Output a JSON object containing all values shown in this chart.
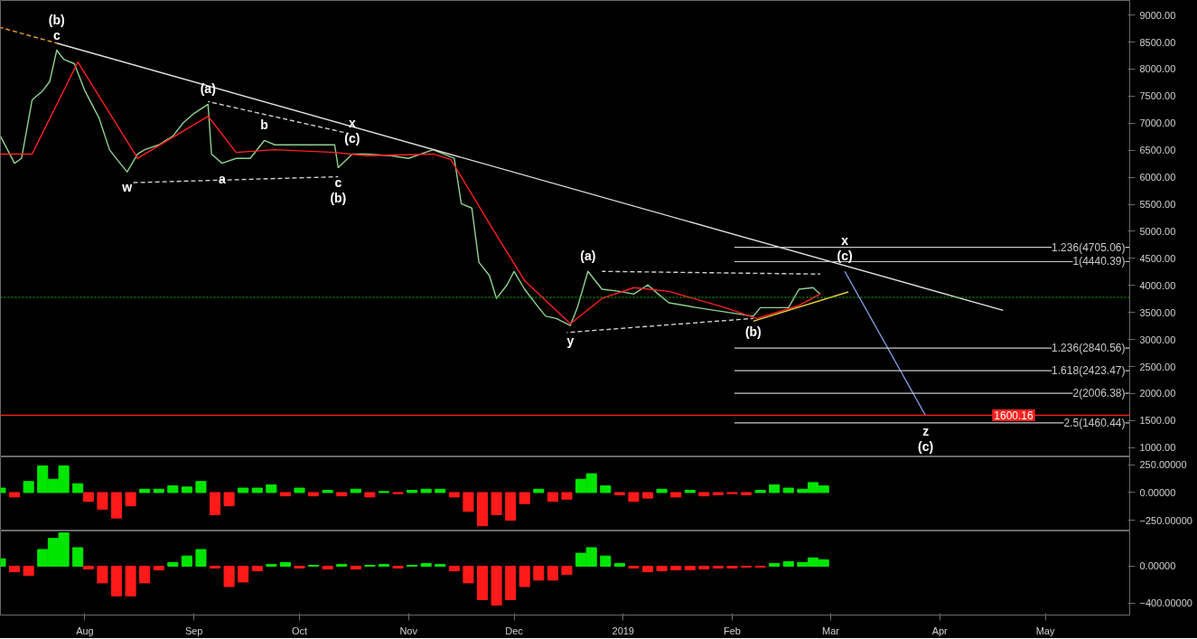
{
  "chart_data": [
    {
      "type": "line",
      "xlim": [
        "2018-07-08",
        "2019-05-25"
      ],
      "ylim": [
        830,
        9270
      ],
      "tick_labels": "y",
      "yticks": [
        {
          "value": 1000,
          "label": "1000.00"
        },
        {
          "value": 1500,
          "label": "1500.00"
        },
        {
          "value": 2000,
          "label": "2000.00"
        },
        {
          "value": 2500,
          "label": "2500.00"
        },
        {
          "value": 3000,
          "label": "3000.00"
        },
        {
          "value": 3500,
          "label": "3500.00"
        },
        {
          "value": 4000,
          "label": "4000.00"
        },
        {
          "value": 4500,
          "label": "4500.00"
        },
        {
          "value": 5000,
          "label": "5000.00"
        },
        {
          "value": 5500,
          "label": "5500.00"
        },
        {
          "value": 6000,
          "label": "6000.00"
        },
        {
          "value": 6500,
          "label": "6500.00"
        },
        {
          "value": 7000,
          "label": "7000.00"
        },
        {
          "value": 7500,
          "label": "7500.00"
        },
        {
          "value": 8000,
          "label": "8000.00"
        },
        {
          "value": 8500,
          "label": "8500.00"
        },
        {
          "value": 9000,
          "label": "9000.00"
        }
      ],
      "series": [
        {
          "color": "#8fd18f",
          "x": [
            "2018-07-08",
            "2018-07-12",
            "2018-07-14",
            "2018-07-17",
            "2018-07-20",
            "2018-07-22",
            "2018-07-24",
            "2018-07-26",
            "2018-07-29",
            "2018-08-01",
            "2018-08-03",
            "2018-08-05",
            "2018-08-08",
            "2018-08-11",
            "2018-08-13",
            "2018-08-16",
            "2018-08-18",
            "2018-08-22",
            "2018-08-26",
            "2018-08-29",
            "2018-09-01",
            "2018-09-05",
            "2018-09-06",
            "2018-09-09",
            "2018-09-13",
            "2018-09-17",
            "2018-09-21",
            "2018-09-24",
            "2018-09-28",
            "2018-10-01",
            "2018-10-07",
            "2018-10-11",
            "2018-10-12",
            "2018-10-16",
            "2018-10-20",
            "2018-10-27",
            "2018-11-01",
            "2018-11-08",
            "2018-11-14",
            "2018-11-16",
            "2018-11-19",
            "2018-11-21",
            "2018-11-24",
            "2018-11-26",
            "2018-11-29",
            "2018-12-01",
            "2018-12-04",
            "2018-12-08",
            "2018-12-10",
            "2018-12-13",
            "2018-12-17",
            "2018-12-19",
            "2018-12-22",
            "2018-12-26",
            "2018-12-31",
            "2019-01-04",
            "2019-01-08",
            "2019-01-11",
            "2019-01-14",
            "2019-01-22",
            "2019-01-30",
            "2019-02-07",
            "2019-02-09",
            "2019-02-17",
            "2019-02-20",
            "2019-02-24",
            "2019-02-26"
          ],
          "values": [
            6760,
            6260,
            6350,
            7430,
            7600,
            7770,
            8350,
            8180,
            8100,
            7600,
            7350,
            7100,
            6510,
            6260,
            6100,
            6430,
            6510,
            6600,
            6760,
            7010,
            7180,
            7350,
            6430,
            6260,
            6350,
            6350,
            6680,
            6600,
            6600,
            6600,
            6600,
            6600,
            6180,
            6430,
            6430,
            6400,
            6350,
            6510,
            6350,
            5510,
            5430,
            4430,
            4180,
            3760,
            4010,
            4260,
            3930,
            3590,
            3430,
            3390,
            3260,
            3590,
            4260,
            3930,
            3890,
            3840,
            4010,
            3840,
            3680,
            3590,
            3510,
            3430,
            3590,
            3590,
            3930,
            3960,
            3840
          ]
        },
        {
          "color": "#ff2020",
          "x": [
            "2018-07-08",
            "2018-07-17",
            "2018-07-30",
            "2018-08-16",
            "2018-09-05",
            "2018-09-13",
            "2018-09-24",
            "2018-10-11",
            "2018-10-20",
            "2018-11-08",
            "2018-11-13",
            "2018-11-26",
            "2018-12-04",
            "2018-12-17",
            "2018-12-26",
            "2019-01-04",
            "2019-01-14",
            "2019-01-30",
            "2019-02-08",
            "2019-02-20",
            "2019-02-26"
          ],
          "values": [
            6430,
            6430,
            8130,
            6350,
            7130,
            6460,
            6510,
            6460,
            6400,
            6430,
            6330,
            4930,
            4090,
            3290,
            3760,
            3960,
            3890,
            3590,
            3390,
            3630,
            3840
          ]
        },
        {
          "color": "#e0e0e0",
          "x": [
            "2018-07-24",
            "2019-04-19"
          ],
          "values": [
            8480,
            3540
          ]
        },
        {
          "color": "#f0a030",
          "line_style": "dashed",
          "x": [
            "2018-07-08",
            "2018-07-24"
          ],
          "values": [
            8770,
            8480
          ]
        },
        {
          "color": "#d0d0d0",
          "line_style": "dashed",
          "x": [
            "2018-09-05",
            "2018-10-15"
          ],
          "values": [
            7400,
            6810
          ]
        },
        {
          "color": "#d0d0d0",
          "line_style": "dashed",
          "x": [
            "2018-08-14",
            "2018-10-12"
          ],
          "values": [
            5900,
            6010
          ]
        },
        {
          "color": "#d0d0d0",
          "line_style": "dashed",
          "x": [
            "2018-12-26",
            "2019-02-26"
          ],
          "values": [
            4260,
            4210
          ]
        },
        {
          "color": "#d0d0d0",
          "line_style": "dashed",
          "x": [
            "2018-12-16",
            "2019-02-07"
          ],
          "values": [
            3130,
            3390
          ]
        },
        {
          "color": "#e8d040",
          "x": [
            "2019-02-07",
            "2019-03-06"
          ],
          "values": [
            3340,
            3880
          ]
        },
        {
          "color": "#7f9fe0",
          "x": [
            "2019-03-05",
            "2019-03-28"
          ],
          "values": [
            4260,
            1590
          ]
        }
      ],
      "ref_lines": [
        {
          "axis": "y",
          "value": 3780,
          "color": "#00c000",
          "line_style": "dotted"
        },
        {
          "axis": "y",
          "value": 4705.06,
          "label": "1.236(4705.06)",
          "color": "#c8c8c8"
        },
        {
          "axis": "y",
          "value": 4440.39,
          "label": "1(4440.39)",
          "color": "#c8c8c8"
        },
        {
          "axis": "y",
          "value": 2840.56,
          "label": "1.236(2840.56)",
          "color": "#c8c8c8"
        },
        {
          "axis": "y",
          "value": 2423.47,
          "label": "1.618(2423.47)",
          "color": "#c8c8c8"
        },
        {
          "axis": "y",
          "value": 2006.38,
          "label": "2(2006.38)",
          "color": "#c8c8c8"
        },
        {
          "axis": "y",
          "value": 1460.44,
          "label": "2.5(1460.44)",
          "color": "#c8c8c8"
        },
        {
          "axis": "y",
          "value": 1600.16,
          "color": "#ff2020"
        }
      ],
      "annotations": [
        {
          "text": "(b)",
          "x": "2018-07-24",
          "y": 8350
        },
        {
          "text": "c",
          "x": "2018-07-24",
          "y": 8350
        },
        {
          "text": "(a)",
          "x": "2018-09-05",
          "y": 7350
        },
        {
          "text": "b",
          "x": "2018-09-21",
          "y": 6680
        },
        {
          "text": "x",
          "x": "2018-10-16",
          "y": 6430
        },
        {
          "text": "(c)",
          "x": "2018-10-16",
          "y": 6430
        },
        {
          "text": "w",
          "x": "2018-08-13",
          "y": 6100
        },
        {
          "text": "a",
          "x": "2018-09-09",
          "y": 6260
        },
        {
          "text": "c",
          "x": "2018-10-12",
          "y": 6180
        },
        {
          "text": "(b)",
          "x": "2018-10-12",
          "y": 6180
        },
        {
          "text": "(a)",
          "x": "2018-12-22",
          "y": 4260
        },
        {
          "text": "y",
          "x": "2018-12-17",
          "y": 3260
        },
        {
          "text": "(b)",
          "x": "2019-02-07",
          "y": 3430
        },
        {
          "text": "x",
          "x": "2019-03-05",
          "y": 4260
        },
        {
          "text": "(c)",
          "x": "2019-03-05",
          "y": 4260
        },
        {
          "text": "z",
          "x": "2019-03-28",
          "y": 1590
        },
        {
          "text": "(c)",
          "x": "2019-03-28",
          "y": 1590
        },
        {
          "text": "1600.16",
          "x": "2019-04-22",
          "y": 1600.16
        }
      ]
    },
    {
      "type": "bar",
      "xlim": [
        "2018-07-08",
        "2019-05-25"
      ],
      "ylim": [
        -347,
        322
      ],
      "tick_labels": "y",
      "yticks": [
        {
          "value": 250,
          "label": "250.00000"
        },
        {
          "value": 0,
          "label": "0.00000"
        },
        {
          "value": -250,
          "label": "−250.00000"
        }
      ],
      "x": [
        "2018-07-08",
        "2018-07-12",
        "2018-07-16",
        "2018-07-20",
        "2018-07-23",
        "2018-07-26",
        "2018-07-30",
        "2018-08-02",
        "2018-08-06",
        "2018-08-10",
        "2018-08-14",
        "2018-08-18",
        "2018-08-22",
        "2018-08-26",
        "2018-08-30",
        "2018-09-03",
        "2018-09-07",
        "2018-09-11",
        "2018-09-15",
        "2018-09-19",
        "2018-09-23",
        "2018-09-27",
        "2018-10-01",
        "2018-10-05",
        "2018-10-09",
        "2018-10-13",
        "2018-10-17",
        "2018-10-21",
        "2018-10-25",
        "2018-10-29",
        "2018-11-02",
        "2018-11-06",
        "2018-11-10",
        "2018-11-14",
        "2018-11-18",
        "2018-11-22",
        "2018-11-26",
        "2018-11-30",
        "2018-12-04",
        "2018-12-08",
        "2018-12-12",
        "2018-12-16",
        "2018-12-20",
        "2018-12-23",
        "2018-12-27",
        "2018-12-31",
        "2019-01-04",
        "2019-01-08",
        "2019-01-12",
        "2019-01-16",
        "2019-01-20",
        "2019-01-24",
        "2019-01-28",
        "2019-02-01",
        "2019-02-05",
        "2019-02-09",
        "2019-02-13",
        "2019-02-17",
        "2019-02-21",
        "2019-02-24",
        "2019-02-27"
      ],
      "values": [
        40,
        -40,
        100,
        240,
        120,
        240,
        80,
        -80,
        -150,
        -230,
        -120,
        30,
        30,
        60,
        50,
        100,
        -200,
        -120,
        40,
        40,
        70,
        -30,
        40,
        -30,
        20,
        -30,
        30,
        -40,
        10,
        -10,
        20,
        30,
        30,
        -40,
        -170,
        -300,
        -200,
        -250,
        -100,
        30,
        -80,
        -60,
        120,
        170,
        60,
        -20,
        -80,
        -50,
        30,
        -40,
        20,
        -30,
        -20,
        -10,
        -20,
        20,
        70,
        40,
        30,
        90,
        60
      ],
      "colors": [
        "#00e600",
        "#ff1a1a",
        "#00e600",
        "#00e600",
        "#00e600",
        "#00e600",
        "#00e600",
        "#ff1a1a",
        "#ff1a1a",
        "#ff1a1a",
        "#ff1a1a",
        "#00e600",
        "#00e600",
        "#00e600",
        "#00e600",
        "#00e600",
        "#ff1a1a",
        "#ff1a1a",
        "#00e600",
        "#00e600",
        "#00e600",
        "#ff1a1a",
        "#00e600",
        "#ff1a1a",
        "#00e600",
        "#ff1a1a",
        "#00e600",
        "#ff1a1a",
        "#00e600",
        "#ff1a1a",
        "#00e600",
        "#00e600",
        "#00e600",
        "#ff1a1a",
        "#ff1a1a",
        "#ff1a1a",
        "#ff1a1a",
        "#ff1a1a",
        "#ff1a1a",
        "#00e600",
        "#ff1a1a",
        "#ff1a1a",
        "#00e600",
        "#00e600",
        "#00e600",
        "#ff1a1a",
        "#ff1a1a",
        "#ff1a1a",
        "#00e600",
        "#ff1a1a",
        "#00e600",
        "#ff1a1a",
        "#ff1a1a",
        "#ff1a1a",
        "#ff1a1a",
        "#00e600",
        "#00e600",
        "#00e600",
        "#00e600",
        "#00e600",
        "#00e600"
      ]
    },
    {
      "type": "bar",
      "xlim": [
        "2018-07-08",
        "2019-05-25"
      ],
      "ylim": [
        -527,
        380
      ],
      "yticks": [
        {
          "value": 0,
          "label": "0.00000"
        },
        {
          "value": -400,
          "label": "−400.00000"
        }
      ],
      "xticks": [
        {
          "value": "2018-08-01",
          "label": "Aug"
        },
        {
          "value": "2018-09-01",
          "label": "Sep"
        },
        {
          "value": "2018-10-01",
          "label": "Oct"
        },
        {
          "value": "2018-11-01",
          "label": "Nov"
        },
        {
          "value": "2018-12-01",
          "label": "Dec"
        },
        {
          "value": "2019-01-01",
          "label": "2019"
        },
        {
          "value": "2019-02-01",
          "label": "Feb"
        },
        {
          "value": "2019-03-01",
          "label": "Mar"
        },
        {
          "value": "2019-04-01",
          "label": "Apr"
        },
        {
          "value": "2019-05-01",
          "label": "May"
        }
      ],
      "x": [
        "2018-07-08",
        "2018-07-12",
        "2018-07-16",
        "2018-07-20",
        "2018-07-23",
        "2018-07-26",
        "2018-07-30",
        "2018-08-02",
        "2018-08-06",
        "2018-08-10",
        "2018-08-14",
        "2018-08-18",
        "2018-08-22",
        "2018-08-26",
        "2018-08-30",
        "2018-09-03",
        "2018-09-07",
        "2018-09-11",
        "2018-09-15",
        "2018-09-19",
        "2018-09-23",
        "2018-09-27",
        "2018-10-01",
        "2018-10-05",
        "2018-10-09",
        "2018-10-13",
        "2018-10-17",
        "2018-10-21",
        "2018-10-25",
        "2018-10-29",
        "2018-11-02",
        "2018-11-06",
        "2018-11-10",
        "2018-11-14",
        "2018-11-18",
        "2018-11-22",
        "2018-11-26",
        "2018-11-30",
        "2018-12-04",
        "2018-12-08",
        "2018-12-12",
        "2018-12-16",
        "2018-12-20",
        "2018-12-23",
        "2018-12-27",
        "2018-12-31",
        "2019-01-04",
        "2019-01-08",
        "2019-01-12",
        "2019-01-16",
        "2019-01-20",
        "2019-01-24",
        "2019-01-28",
        "2019-02-01",
        "2019-02-05",
        "2019-02-09",
        "2019-02-13",
        "2019-02-17",
        "2019-02-21",
        "2019-02-24",
        "2019-02-27"
      ],
      "values": [
        80,
        -60,
        -100,
        180,
        300,
        360,
        200,
        -30,
        -180,
        -320,
        -320,
        -180,
        -40,
        40,
        110,
        180,
        -20,
        -220,
        -170,
        -50,
        20,
        40,
        -20,
        10,
        -30,
        20,
        -30,
        10,
        20,
        -20,
        10,
        30,
        20,
        -50,
        -180,
        -360,
        -420,
        -360,
        -220,
        -150,
        -150,
        -90,
        140,
        200,
        110,
        30,
        -20,
        -60,
        -50,
        -40,
        -40,
        -30,
        -20,
        -20,
        -10,
        -10,
        30,
        50,
        40,
        90,
        70
      ],
      "colors": [
        "#00e600",
        "#ff1a1a",
        "#ff1a1a",
        "#00e600",
        "#00e600",
        "#00e600",
        "#00e600",
        "#ff1a1a",
        "#ff1a1a",
        "#ff1a1a",
        "#ff1a1a",
        "#ff1a1a",
        "#ff1a1a",
        "#00e600",
        "#00e600",
        "#00e600",
        "#ff1a1a",
        "#ff1a1a",
        "#ff1a1a",
        "#ff1a1a",
        "#00e600",
        "#00e600",
        "#ff1a1a",
        "#00e600",
        "#ff1a1a",
        "#00e600",
        "#ff1a1a",
        "#00e600",
        "#00e600",
        "#ff1a1a",
        "#00e600",
        "#00e600",
        "#00e600",
        "#ff1a1a",
        "#ff1a1a",
        "#ff1a1a",
        "#ff1a1a",
        "#ff1a1a",
        "#ff1a1a",
        "#ff1a1a",
        "#ff1a1a",
        "#ff1a1a",
        "#00e600",
        "#00e600",
        "#00e600",
        "#00e600",
        "#ff1a1a",
        "#ff1a1a",
        "#ff1a1a",
        "#ff1a1a",
        "#ff1a1a",
        "#ff1a1a",
        "#ff1a1a",
        "#ff1a1a",
        "#ff1a1a",
        "#ff1a1a",
        "#00e600",
        "#00e600",
        "#00e600",
        "#00e600",
        "#00e600"
      ]
    }
  ]
}
